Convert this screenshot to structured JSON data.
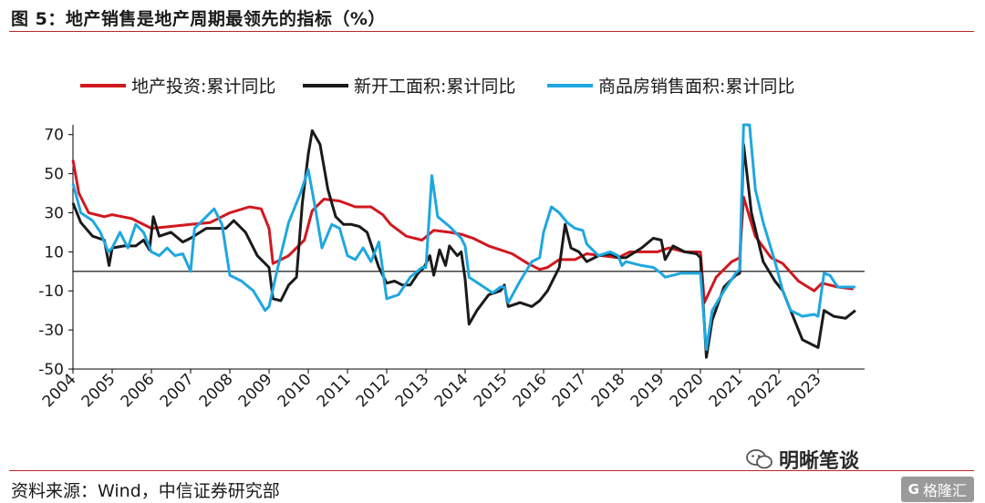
{
  "figure_title": "图 5：地产销售是地产周期最领先的指标（%）",
  "source": "资料来源：Wind，中信证券研究部",
  "watermark": "明晰笔谈",
  "brand": "格隆汇",
  "brand_mark": "G",
  "chart_data": {
    "type": "line",
    "title": "",
    "xlabel": "",
    "ylabel": "",
    "ylim": [
      -50,
      80
    ],
    "yticks": [
      70,
      50,
      30,
      10,
      -10,
      -30,
      -50
    ],
    "x_range": [
      2004.0,
      2024.0
    ],
    "xticks": [
      "2004",
      "2005",
      "2006",
      "2007",
      "2008",
      "2009",
      "2010",
      "2011",
      "2012",
      "2013",
      "2014",
      "2015",
      "2016",
      "2017",
      "2018",
      "2019",
      "2020",
      "2021",
      "2022",
      "2023"
    ],
    "legend_position": "top",
    "grid": false,
    "series": [
      {
        "name": "地产投资:累计同比",
        "color": "#d1181f",
        "points": [
          [
            2004.0,
            57
          ],
          [
            2004.15,
            40
          ],
          [
            2004.4,
            30
          ],
          [
            2004.8,
            28
          ],
          [
            2005.0,
            29
          ],
          [
            2005.5,
            27
          ],
          [
            2006.0,
            22
          ],
          [
            2006.5,
            23
          ],
          [
            2007.0,
            24
          ],
          [
            2007.5,
            25
          ],
          [
            2008.0,
            30
          ],
          [
            2008.5,
            33
          ],
          [
            2008.8,
            32
          ],
          [
            2009.0,
            22
          ],
          [
            2009.1,
            4
          ],
          [
            2009.5,
            8
          ],
          [
            2009.9,
            16
          ],
          [
            2010.1,
            31
          ],
          [
            2010.4,
            37
          ],
          [
            2010.8,
            36
          ],
          [
            2011.2,
            33
          ],
          [
            2011.6,
            33
          ],
          [
            2011.9,
            29
          ],
          [
            2012.1,
            24
          ],
          [
            2012.5,
            18
          ],
          [
            2012.9,
            16
          ],
          [
            2013.2,
            21
          ],
          [
            2013.6,
            20
          ],
          [
            2013.9,
            19
          ],
          [
            2014.2,
            17
          ],
          [
            2014.6,
            13
          ],
          [
            2014.9,
            11
          ],
          [
            2015.2,
            9
          ],
          [
            2015.6,
            4
          ],
          [
            2015.9,
            1
          ],
          [
            2016.1,
            2
          ],
          [
            2016.4,
            6
          ],
          [
            2016.8,
            6
          ],
          [
            2017.1,
            9
          ],
          [
            2017.5,
            8
          ],
          [
            2017.9,
            7
          ],
          [
            2018.2,
            10
          ],
          [
            2018.6,
            10
          ],
          [
            2018.9,
            10
          ],
          [
            2019.2,
            12
          ],
          [
            2019.6,
            10
          ],
          [
            2019.9,
            10
          ],
          [
            2020.0,
            9.9
          ],
          [
            2020.1,
            -16
          ],
          [
            2020.4,
            -3
          ],
          [
            2020.8,
            5
          ],
          [
            2021.0,
            7
          ],
          [
            2021.1,
            38
          ],
          [
            2021.4,
            18
          ],
          [
            2021.8,
            7
          ],
          [
            2022.1,
            4
          ],
          [
            2022.5,
            -5
          ],
          [
            2022.9,
            -10
          ],
          [
            2023.1,
            -6
          ],
          [
            2023.5,
            -8
          ],
          [
            2023.9,
            -9
          ]
        ]
      },
      {
        "name": "新开工面积:累计同比",
        "color": "#1a1a1a",
        "points": [
          [
            2004.0,
            35
          ],
          [
            2004.2,
            25
          ],
          [
            2004.5,
            18
          ],
          [
            2004.8,
            16
          ],
          [
            2004.92,
            3
          ],
          [
            2005.0,
            12
          ],
          [
            2005.3,
            13
          ],
          [
            2005.6,
            13
          ],
          [
            2005.8,
            16
          ],
          [
            2005.95,
            11
          ],
          [
            2006.05,
            28
          ],
          [
            2006.2,
            18
          ],
          [
            2006.5,
            20
          ],
          [
            2006.8,
            15
          ],
          [
            2007.0,
            17
          ],
          [
            2007.4,
            22
          ],
          [
            2007.9,
            22
          ],
          [
            2008.1,
            26
          ],
          [
            2008.4,
            20
          ],
          [
            2008.7,
            8
          ],
          [
            2009.0,
            2
          ],
          [
            2009.1,
            -14
          ],
          [
            2009.3,
            -15
          ],
          [
            2009.5,
            -7
          ],
          [
            2009.7,
            -3
          ],
          [
            2009.85,
            35
          ],
          [
            2010.0,
            60
          ],
          [
            2010.1,
            72
          ],
          [
            2010.3,
            65
          ],
          [
            2010.5,
            42
          ],
          [
            2010.7,
            28
          ],
          [
            2010.9,
            24
          ],
          [
            2011.1,
            24
          ],
          [
            2011.3,
            23
          ],
          [
            2011.5,
            20
          ],
          [
            2011.8,
            2
          ],
          [
            2012.0,
            -6
          ],
          [
            2012.2,
            -5
          ],
          [
            2012.4,
            -7
          ],
          [
            2012.6,
            -7
          ],
          [
            2012.8,
            -1
          ],
          [
            2012.95,
            2
          ],
          [
            2013.1,
            8
          ],
          [
            2013.2,
            -2
          ],
          [
            2013.35,
            11
          ],
          [
            2013.5,
            3
          ],
          [
            2013.6,
            13
          ],
          [
            2013.8,
            8
          ],
          [
            2013.9,
            10
          ],
          [
            2014.0,
            -4
          ],
          [
            2014.1,
            -27
          ],
          [
            2014.3,
            -20
          ],
          [
            2014.6,
            -12
          ],
          [
            2014.9,
            -10
          ],
          [
            2015.0,
            -7
          ],
          [
            2015.1,
            -18
          ],
          [
            2015.4,
            -16
          ],
          [
            2015.7,
            -18
          ],
          [
            2015.9,
            -15
          ],
          [
            2016.1,
            -10
          ],
          [
            2016.4,
            2
          ],
          [
            2016.55,
            24
          ],
          [
            2016.7,
            12
          ],
          [
            2016.9,
            10
          ],
          [
            2017.1,
            5
          ],
          [
            2017.4,
            8
          ],
          [
            2017.7,
            9
          ],
          [
            2017.9,
            7
          ],
          [
            2018.1,
            7
          ],
          [
            2018.5,
            12
          ],
          [
            2018.8,
            17
          ],
          [
            2019.0,
            16
          ],
          [
            2019.1,
            6
          ],
          [
            2019.3,
            13
          ],
          [
            2019.6,
            10
          ],
          [
            2019.9,
            9
          ],
          [
            2020.0,
            7
          ],
          [
            2020.15,
            -44
          ],
          [
            2020.3,
            -25
          ],
          [
            2020.6,
            -8
          ],
          [
            2020.9,
            -2
          ],
          [
            2021.0,
            -1
          ],
          [
            2021.1,
            65
          ],
          [
            2021.3,
            30
          ],
          [
            2021.6,
            5
          ],
          [
            2021.9,
            -5
          ],
          [
            2022.1,
            -10
          ],
          [
            2022.4,
            -25
          ],
          [
            2022.6,
            -35
          ],
          [
            2022.9,
            -38
          ],
          [
            2023.0,
            -39
          ],
          [
            2023.15,
            -20
          ],
          [
            2023.4,
            -23
          ],
          [
            2023.7,
            -24
          ],
          [
            2023.95,
            -20
          ]
        ]
      },
      {
        "name": "商品房销售面积:累计同比",
        "color": "#1ea7e0",
        "points": [
          [
            2004.0,
            45
          ],
          [
            2004.2,
            30
          ],
          [
            2004.5,
            26
          ],
          [
            2004.7,
            20
          ],
          [
            2004.9,
            10
          ],
          [
            2005.0,
            12
          ],
          [
            2005.2,
            20
          ],
          [
            2005.4,
            12
          ],
          [
            2005.6,
            24
          ],
          [
            2005.8,
            20
          ],
          [
            2006.0,
            10
          ],
          [
            2006.2,
            8
          ],
          [
            2006.4,
            12
          ],
          [
            2006.6,
            8
          ],
          [
            2006.8,
            9
          ],
          [
            2007.0,
            0
          ],
          [
            2007.1,
            22
          ],
          [
            2007.4,
            28
          ],
          [
            2007.6,
            32
          ],
          [
            2007.8,
            24
          ],
          [
            2008.0,
            -2
          ],
          [
            2008.3,
            -5
          ],
          [
            2008.6,
            -10
          ],
          [
            2008.9,
            -20
          ],
          [
            2009.0,
            -18
          ],
          [
            2009.2,
            0
          ],
          [
            2009.5,
            25
          ],
          [
            2009.8,
            40
          ],
          [
            2010.0,
            52
          ],
          [
            2010.2,
            30
          ],
          [
            2010.35,
            12
          ],
          [
            2010.6,
            24
          ],
          [
            2010.8,
            22
          ],
          [
            2011.0,
            8
          ],
          [
            2011.2,
            6
          ],
          [
            2011.4,
            12
          ],
          [
            2011.6,
            5
          ],
          [
            2011.8,
            15
          ],
          [
            2012.0,
            -14
          ],
          [
            2012.3,
            -12
          ],
          [
            2012.6,
            -3
          ],
          [
            2012.9,
            2
          ],
          [
            2013.0,
            2
          ],
          [
            2013.15,
            49
          ],
          [
            2013.3,
            28
          ],
          [
            2013.6,
            23
          ],
          [
            2013.9,
            17
          ],
          [
            2014.0,
            13
          ],
          [
            2014.1,
            -3
          ],
          [
            2014.4,
            -7
          ],
          [
            2014.7,
            -11
          ],
          [
            2014.9,
            -8
          ],
          [
            2015.0,
            -8
          ],
          [
            2015.1,
            -16
          ],
          [
            2015.4,
            -5
          ],
          [
            2015.7,
            5
          ],
          [
            2015.9,
            7
          ],
          [
            2016.0,
            20
          ],
          [
            2016.2,
            33
          ],
          [
            2016.4,
            30
          ],
          [
            2016.6,
            25
          ],
          [
            2016.8,
            22
          ],
          [
            2017.0,
            21
          ],
          [
            2017.1,
            14
          ],
          [
            2017.4,
            8
          ],
          [
            2017.7,
            10
          ],
          [
            2017.9,
            8
          ],
          [
            2018.0,
            3
          ],
          [
            2018.1,
            5
          ],
          [
            2018.5,
            3
          ],
          [
            2018.8,
            2
          ],
          [
            2019.0,
            -1
          ],
          [
            2019.1,
            -3
          ],
          [
            2019.5,
            -1
          ],
          [
            2019.9,
            -1
          ],
          [
            2020.0,
            -1
          ],
          [
            2020.15,
            -40
          ],
          [
            2020.3,
            -20
          ],
          [
            2020.6,
            -10
          ],
          [
            2020.9,
            -1
          ],
          [
            2021.0,
            1
          ],
          [
            2021.1,
            80
          ],
          [
            2021.25,
            80
          ],
          [
            2021.4,
            42
          ],
          [
            2021.6,
            25
          ],
          [
            2021.9,
            5
          ],
          [
            2022.1,
            -10
          ],
          [
            2022.3,
            -20
          ],
          [
            2022.6,
            -23
          ],
          [
            2022.9,
            -22
          ],
          [
            2023.0,
            -23
          ],
          [
            2023.15,
            -1
          ],
          [
            2023.3,
            -2
          ],
          [
            2023.5,
            -8
          ],
          [
            2023.95,
            -8
          ]
        ]
      }
    ]
  }
}
